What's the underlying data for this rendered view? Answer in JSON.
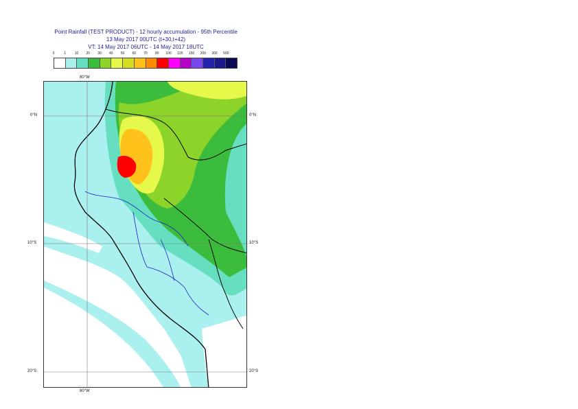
{
  "title": {
    "line1": "Point Rainfall (TEST PRODUCT) - 12 hourly accumulation - 95th Percentile",
    "line2": "13 May 2017 00UTC (t+30,t+42)",
    "line3": "VT: 14 May 2017 06UTC - 14 May 2017 18UTC"
  },
  "legend": {
    "labels": [
      "0",
      "1",
      "10",
      "20",
      "30",
      "40",
      "50",
      "60",
      "70",
      "80",
      "100",
      "125",
      "150",
      "200",
      "300",
      "500"
    ],
    "colors": [
      "#ffffff",
      "#aaf0ee",
      "#66dfc0",
      "#3cbc3c",
      "#8cd32a",
      "#e6f84a",
      "#d6dc1e",
      "#ffc21a",
      "#ff8a00",
      "#ff0000",
      "#ff00ff",
      "#b400c8",
      "#7a46f0",
      "#2222aa",
      "#1a1a8c",
      "#0a0a55"
    ]
  },
  "axes": {
    "lon_top": "80°W",
    "lon_bottom": "80°W",
    "lat_0": "0°N",
    "lat_10": "10°S",
    "lat_20": "20°S"
  }
}
